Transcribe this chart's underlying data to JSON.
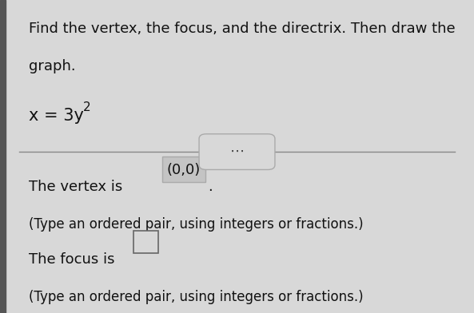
{
  "bg_color": "#d8d8d8",
  "title_line1": "Find the vertex, the focus, and the directrix. Then draw the",
  "title_line2": "graph.",
  "divider_color": "#888888",
  "vertex_text": "The vertex is ",
  "vertex_value": "(0,0)",
  "vertex_subtext": "(Type an ordered pair, using integers or fractions.)",
  "focus_text": "The focus is ",
  "focus_subtext": "(Type an ordered pair, using integers or fractions.)",
  "main_font_size": 13,
  "text_color": "#111111",
  "left_bar_color": "#555555"
}
